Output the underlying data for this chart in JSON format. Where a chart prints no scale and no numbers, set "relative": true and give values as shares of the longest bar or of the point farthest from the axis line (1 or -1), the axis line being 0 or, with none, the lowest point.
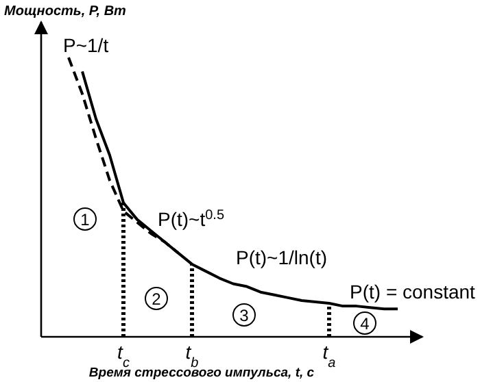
{
  "chart_data": {
    "type": "line",
    "relative": true,
    "ylabel": "Мощность, P, Вт",
    "xlabel": "Время стрессового импульса, t, c",
    "tick_labels": "x",
    "marker": "none",
    "categories": [
      null,
      null,
      null,
      null,
      null,
      null,
      "t$_{c}$",
      null,
      null,
      null,
      null,
      "t$_{b}$",
      null,
      null,
      null,
      null,
      null,
      null,
      null,
      null,
      null,
      "t$_{a}$",
      null,
      null,
      null,
      null,
      null,
      null
    ],
    "series": [
      {
        "color": "#000000",
        "line_style": "solid",
        "values": [
          null,
          null,
          null,
          0.95,
          0.78,
          0.65,
          0.48,
          0.42,
          0.38,
          0.34,
          0.3,
          0.26,
          0.235,
          0.21,
          0.19,
          0.18,
          0.16,
          0.15,
          0.14,
          0.13,
          0.125,
          0.12,
          0.11,
          0.11,
          0.105,
          0.1,
          0.1,
          null
        ]
      },
      {
        "color": "#000000",
        "line_style": "dashed",
        "values": [
          null,
          null,
          1,
          0.87,
          0.71,
          0.56,
          0.45,
          0.41,
          0.37,
          0.34,
          0.3,
          null,
          null,
          null,
          null,
          null,
          null,
          null,
          null,
          null,
          null,
          null,
          null,
          null,
          null,
          null,
          null,
          null
        ]
      },
      {
        "type": "bar",
        "color": "#000000",
        "values": [
          null,
          null,
          null,
          null,
          null,
          null,
          0.48,
          null,
          null,
          null,
          null,
          0.26,
          null,
          null,
          null,
          null,
          null,
          null,
          null,
          null,
          null,
          0.12,
          null,
          null,
          null,
          null,
          null,
          null
        ]
      }
    ],
    "annotations": [
      "P~1/t",
      "P(t)~t$^{0.5}$",
      "P(t)~1/ln(t)",
      "P(t) = constant",
      "1",
      "2",
      "3",
      "4"
    ]
  }
}
